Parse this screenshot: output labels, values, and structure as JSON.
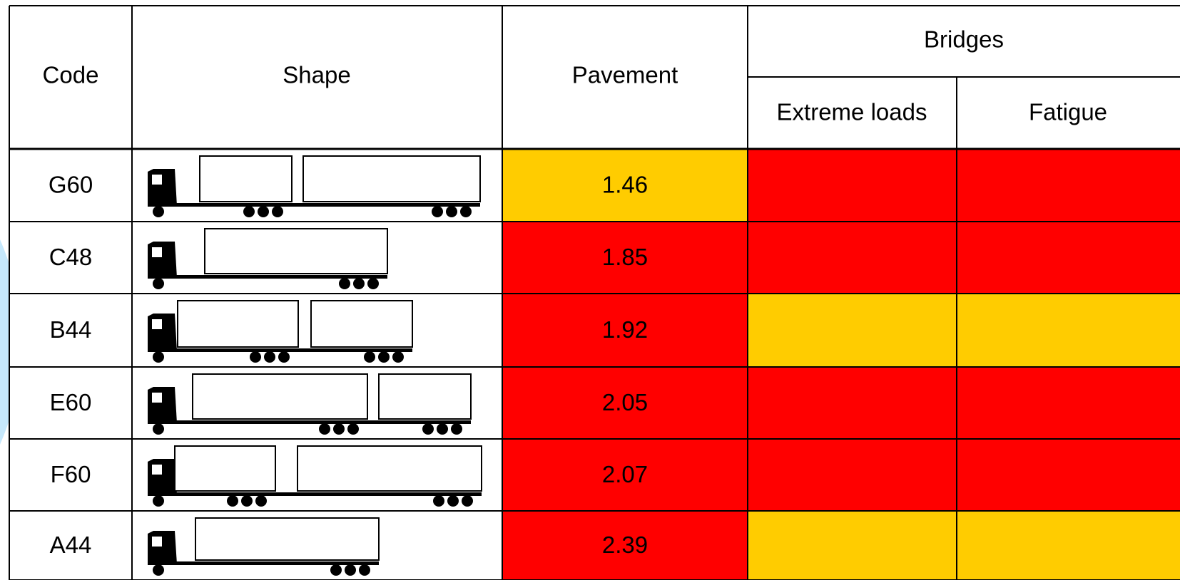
{
  "headers": {
    "code": "Code",
    "shape": "Shape",
    "pavement": "Pavement",
    "bridges": "Bridges",
    "extreme_loads": "Extreme loads",
    "fatigue": "Fatigue"
  },
  "rows": [
    {
      "code": "G60",
      "pavement": 1.46,
      "pavement_color": "#ffcc00",
      "extreme_loads_color": "#ff0000",
      "fatigue_color": "#ff0000"
    },
    {
      "code": "C48",
      "pavement": 1.85,
      "pavement_color": "#ff0000",
      "extreme_loads_color": "#ff0000",
      "fatigue_color": "#ff0000"
    },
    {
      "code": "B44",
      "pavement": 1.92,
      "pavement_color": "#ff0000",
      "extreme_loads_color": "#ffcc00",
      "fatigue_color": "#ffcc00"
    },
    {
      "code": "E60",
      "pavement": 2.05,
      "pavement_color": "#ff0000",
      "extreme_loads_color": "#ff0000",
      "fatigue_color": "#ff0000"
    },
    {
      "code": "F60",
      "pavement": 2.07,
      "pavement_color": "#ff0000",
      "extreme_loads_color": "#ff0000",
      "fatigue_color": "#ff0000"
    },
    {
      "code": "A44",
      "pavement": 2.39,
      "pavement_color": "#ff0000",
      "extreme_loads_color": "#ffcc00",
      "fatigue_color": "#ffcc00"
    }
  ]
}
